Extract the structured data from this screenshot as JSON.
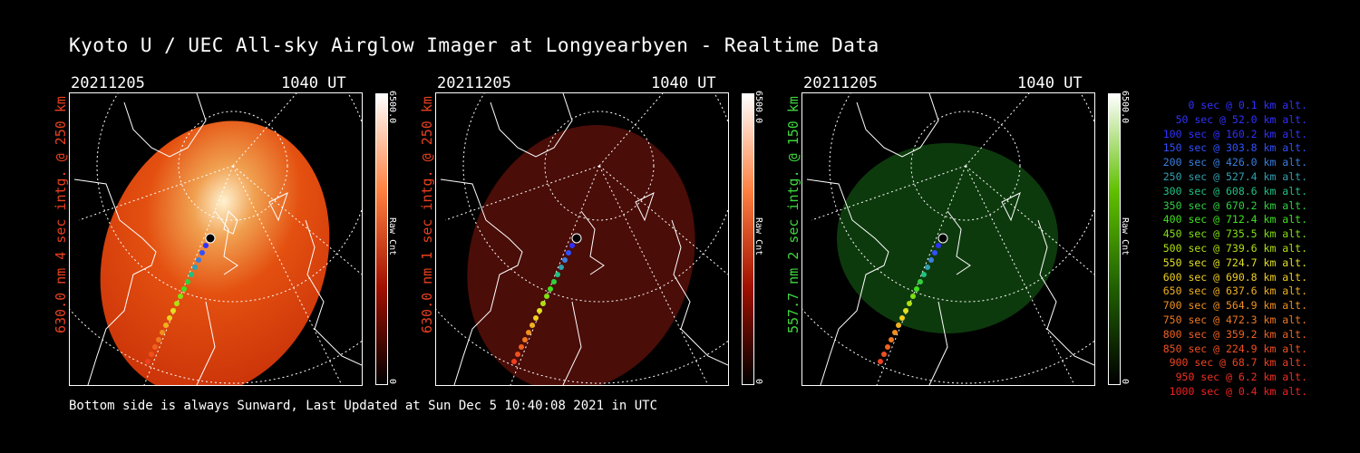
{
  "title": "Kyoto U / UEC All-sky Airglow Imager at Longyearbyen - Realtime Data",
  "footer": "Bottom side is always Sunward, Last Updated at Sun Dec  5 10:40:08 2021 in UTC",
  "panels": [
    {
      "date": "20211205",
      "time": "1040 UT",
      "label": "630.0 nm 4 sec intg. @ 250 km",
      "label_color": "#e8401f",
      "cb_max": "6500.0",
      "cb_min": "0",
      "cb_label": "Raw Cnt",
      "cb_color": "#ff4000"
    },
    {
      "date": "20211205",
      "time": "1040 UT",
      "label": "630.0 nm 1 sec intg. @ 250 km",
      "label_color": "#e8401f",
      "cb_max": "6500.0",
      "cb_min": "0",
      "cb_label": "Raw Cnt",
      "cb_color": "#ff4000"
    },
    {
      "date": "20211205",
      "time": "1040 UT",
      "label": "557.7 nm 2 sec intg. @ 150 km",
      "label_color": "#3ed63e",
      "cb_max": "6500.0",
      "cb_min": "0",
      "cb_label": "Raw Cnt",
      "cb_color": "#4cc000"
    }
  ],
  "legend": [
    {
      "text": "0 sec @   0.1 km alt.",
      "color": "#3030ff"
    },
    {
      "text": "50 sec @  52.0 km alt.",
      "color": "#3030ff"
    },
    {
      "text": "100 sec @ 160.2 km alt.",
      "color": "#3030ff"
    },
    {
      "text": "150 sec @ 303.8 km alt.",
      "color": "#3050ff"
    },
    {
      "text": "200 sec @ 426.0 km alt.",
      "color": "#3a7fe0"
    },
    {
      "text": "250 sec @ 527.4 km alt.",
      "color": "#30a0b0"
    },
    {
      "text": "300 sec @ 608.6 km alt.",
      "color": "#20c080"
    },
    {
      "text": "350 sec @ 670.2 km alt.",
      "color": "#30d040"
    },
    {
      "text": "400 sec @ 712.4 km alt.",
      "color": "#40e020"
    },
    {
      "text": "450 sec @ 735.5 km alt.",
      "color": "#80e010"
    },
    {
      "text": "500 sec @ 739.6 km alt.",
      "color": "#b0e010"
    },
    {
      "text": "550 sec @ 724.7 km alt.",
      "color": "#e0e020"
    },
    {
      "text": "600 sec @ 690.8 km alt.",
      "color": "#f0d020"
    },
    {
      "text": "650 sec @ 637.6 km alt.",
      "color": "#f0b020"
    },
    {
      "text": "700 sec @ 564.9 km alt.",
      "color": "#f09020"
    },
    {
      "text": "750 sec @ 472.3 km alt.",
      "color": "#f07820"
    },
    {
      "text": "800 sec @ 359.2 km alt.",
      "color": "#f06020"
    },
    {
      "text": "850 sec @ 224.9 km alt.",
      "color": "#f05020"
    },
    {
      "text": "900 sec @  68.7 km alt.",
      "color": "#f04020"
    },
    {
      "text": "950 sec @   6.2 km alt.",
      "color": "#f03020"
    },
    {
      "text": "1000 sec @   0.4 km alt.",
      "color": "#f02020"
    }
  ]
}
